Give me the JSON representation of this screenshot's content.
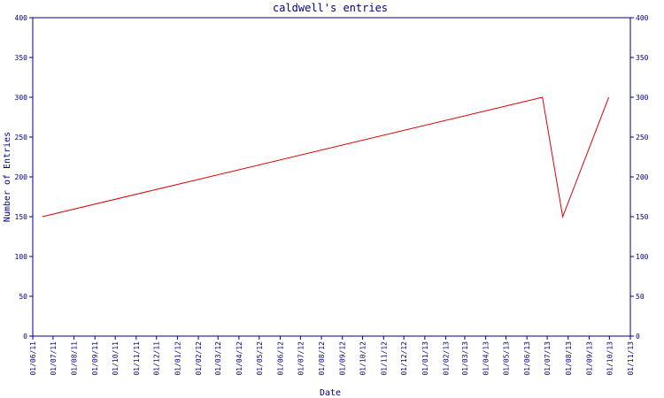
{
  "chart_data": {
    "type": "line",
    "title": "caldwell's entries",
    "xlabel": "Date",
    "ylabel": "Number of Entries",
    "ylim": [
      0,
      400
    ],
    "yticks": [
      0,
      50,
      100,
      150,
      200,
      250,
      300,
      350,
      400
    ],
    "xticks": [
      "01/06/11",
      "01/07/11",
      "01/08/11",
      "01/09/11",
      "01/10/11",
      "01/11/11",
      "01/12/11",
      "01/01/12",
      "01/02/12",
      "01/03/12",
      "01/04/12",
      "01/05/12",
      "01/06/12",
      "01/07/12",
      "01/08/12",
      "01/09/12",
      "01/10/12",
      "01/11/12",
      "01/12/12",
      "01/01/13",
      "01/02/13",
      "01/03/13",
      "01/04/13",
      "01/05/13",
      "01/06/13",
      "01/07/13",
      "01/08/13",
      "01/09/13",
      "01/10/13",
      "01/11/13"
    ],
    "series": [
      {
        "color": "#dd0000",
        "points": [
          {
            "x": "2011-06-15",
            "y": 150
          },
          {
            "x": "2013-06-24",
            "y": 300
          },
          {
            "x": "2013-07-24",
            "y": 150
          },
          {
            "x": "2013-09-30",
            "y": 300
          }
        ]
      }
    ],
    "axis_color": "#000080",
    "text_color": "#000080",
    "grid": false
  }
}
